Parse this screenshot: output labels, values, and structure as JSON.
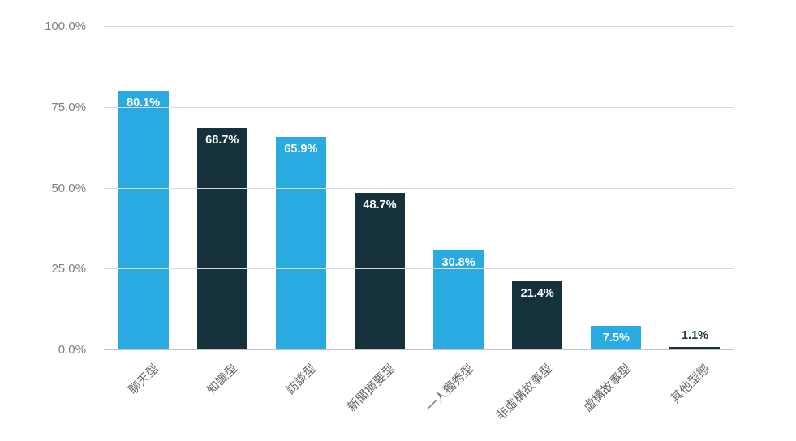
{
  "chart_data": {
    "type": "bar",
    "title": "",
    "xlabel": "",
    "ylabel": "",
    "ylim": [
      0,
      100
    ],
    "grid": true,
    "legend_position": "none",
    "categories": [
      "聊天型",
      "知識型",
      "訪談型",
      "新聞摘要型",
      "一人獨秀型",
      "非虛構故事型",
      "虛構故事型",
      "其他型態"
    ],
    "values": [
      80.1,
      68.7,
      65.9,
      48.7,
      30.8,
      21.4,
      7.5,
      1.1
    ],
    "value_labels": [
      "80.1%",
      "68.7%",
      "65.9%",
      "48.7%",
      "30.8%",
      "21.4%",
      "7.5%",
      "1.1%"
    ],
    "bar_colors": [
      "#29abe2",
      "#15323c",
      "#29abe2",
      "#15323c",
      "#29abe2",
      "#15323c",
      "#29abe2",
      "#15323c"
    ],
    "yticks": [
      {
        "value": 0,
        "label": "0.0%"
      },
      {
        "value": 25,
        "label": "25.0%"
      },
      {
        "value": 50,
        "label": "50.0%"
      },
      {
        "value": 75,
        "label": "75.0%"
      },
      {
        "value": 100,
        "label": "100.0%"
      }
    ],
    "inside_label_color": "#ffffff",
    "outside_label_color": "#15323c",
    "outside_label_threshold": 5
  },
  "colors": {
    "bar_blue": "#29abe2",
    "bar_dark": "#15323c",
    "gridline": "#d9d9d9",
    "y_axis_text": "#808080",
    "x_axis_text": "#666666",
    "background": "#ffffff"
  }
}
